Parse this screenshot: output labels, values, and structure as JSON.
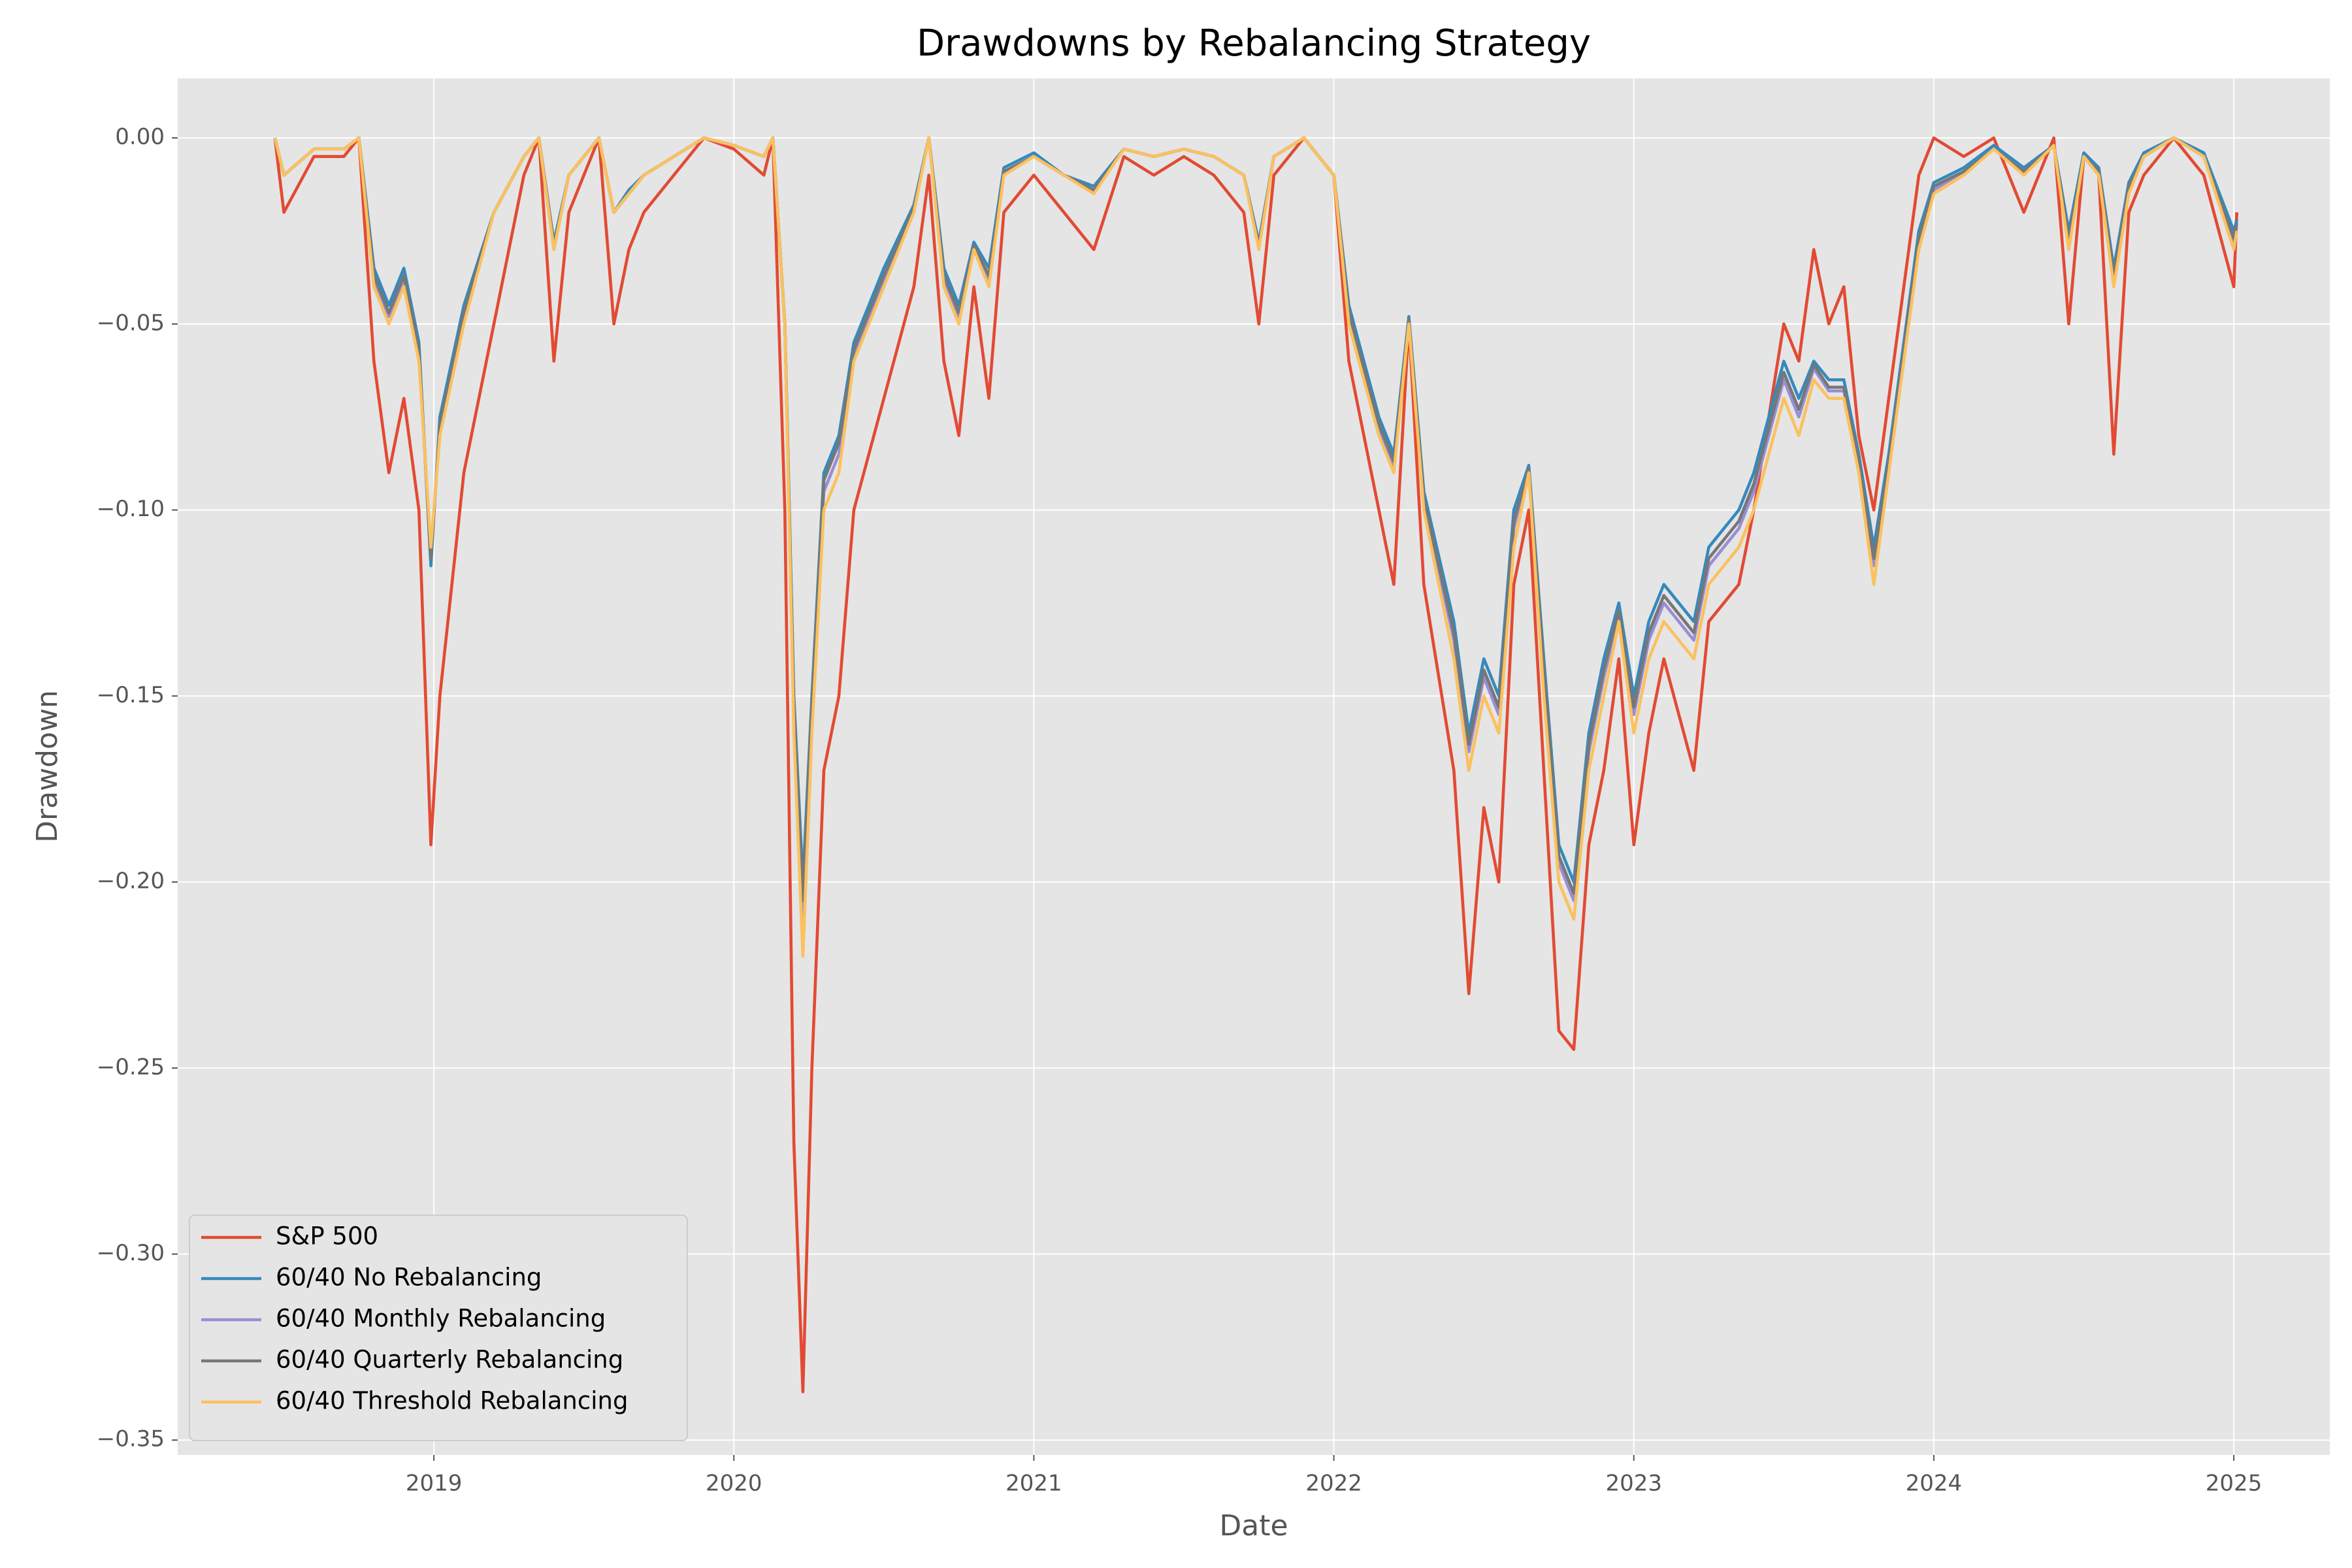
{
  "chart_data": {
    "type": "line",
    "title": "Drawdowns by Rebalancing Strategy",
    "xlabel": "Date",
    "ylabel": "Drawdown",
    "x": [
      2018.47,
      2018.5,
      2018.6,
      2018.7,
      2018.75,
      2018.8,
      2018.85,
      2018.9,
      2018.95,
      2018.99,
      2019.02,
      2019.1,
      2019.2,
      2019.3,
      2019.35,
      2019.4,
      2019.45,
      2019.55,
      2019.6,
      2019.65,
      2019.7,
      2019.8,
      2019.9,
      2020.0,
      2020.1,
      2020.13,
      2020.17,
      2020.2,
      2020.23,
      2020.26,
      2020.3,
      2020.35,
      2020.4,
      2020.5,
      2020.6,
      2020.65,
      2020.7,
      2020.75,
      2020.8,
      2020.85,
      2020.9,
      2021.0,
      2021.1,
      2021.2,
      2021.3,
      2021.4,
      2021.5,
      2021.6,
      2021.7,
      2021.75,
      2021.8,
      2021.9,
      2022.0,
      2022.05,
      2022.15,
      2022.2,
      2022.25,
      2022.3,
      2022.4,
      2022.45,
      2022.5,
      2022.55,
      2022.6,
      2022.65,
      2022.7,
      2022.75,
      2022.8,
      2022.85,
      2022.9,
      2022.95,
      2023.0,
      2023.05,
      2023.1,
      2023.2,
      2023.25,
      2023.35,
      2023.4,
      2023.5,
      2023.55,
      2023.6,
      2023.65,
      2023.7,
      2023.75,
      2023.8,
      2023.85,
      2023.9,
      2023.95,
      2024.0,
      2024.1,
      2024.2,
      2024.3,
      2024.4,
      2024.45,
      2024.5,
      2024.55,
      2024.6,
      2024.65,
      2024.7,
      2024.8,
      2024.9,
      2025.0,
      2025.01
    ],
    "series": [
      {
        "name": "S&P 500",
        "color": "#E24A33",
        "values": [
          0,
          -0.02,
          -0.005,
          -0.005,
          0,
          -0.06,
          -0.09,
          -0.07,
          -0.1,
          -0.19,
          -0.15,
          -0.09,
          -0.05,
          -0.01,
          0,
          -0.06,
          -0.02,
          0,
          -0.05,
          -0.03,
          -0.02,
          -0.01,
          0,
          -0.003,
          -0.01,
          0,
          -0.1,
          -0.27,
          -0.337,
          -0.25,
          -0.17,
          -0.15,
          -0.1,
          -0.07,
          -0.04,
          -0.01,
          -0.06,
          -0.08,
          -0.04,
          -0.07,
          -0.02,
          -0.01,
          -0.02,
          -0.03,
          -0.005,
          -0.01,
          -0.005,
          -0.01,
          -0.02,
          -0.05,
          -0.01,
          0,
          -0.01,
          -0.06,
          -0.1,
          -0.12,
          -0.05,
          -0.12,
          -0.17,
          -0.23,
          -0.18,
          -0.2,
          -0.12,
          -0.1,
          -0.17,
          -0.24,
          -0.245,
          -0.19,
          -0.17,
          -0.14,
          -0.19,
          -0.16,
          -0.14,
          -0.17,
          -0.13,
          -0.12,
          -0.1,
          -0.05,
          -0.06,
          -0.03,
          -0.05,
          -0.04,
          -0.08,
          -0.1,
          -0.07,
          -0.04,
          -0.01,
          0,
          -0.005,
          0,
          -0.02,
          0,
          -0.05,
          -0.005,
          -0.01,
          -0.085,
          -0.02,
          -0.01,
          0,
          -0.01,
          -0.04,
          -0.02
        ]
      },
      {
        "name": "60/40 No Rebalancing",
        "color": "#348ABD",
        "values": [
          0,
          -0.01,
          -0.003,
          -0.003,
          0,
          -0.035,
          -0.045,
          -0.035,
          -0.055,
          -0.115,
          -0.075,
          -0.045,
          -0.02,
          -0.005,
          0,
          -0.028,
          -0.01,
          0,
          -0.02,
          -0.014,
          -0.01,
          -0.005,
          0,
          -0.002,
          -0.005,
          0,
          -0.05,
          -0.15,
          -0.2,
          -0.15,
          -0.09,
          -0.08,
          -0.055,
          -0.035,
          -0.018,
          0,
          -0.035,
          -0.045,
          -0.028,
          -0.035,
          -0.008,
          -0.004,
          -0.01,
          -0.013,
          -0.003,
          -0.005,
          -0.003,
          -0.005,
          -0.01,
          -0.028,
          -0.005,
          0,
          -0.01,
          -0.045,
          -0.075,
          -0.085,
          -0.048,
          -0.095,
          -0.13,
          -0.16,
          -0.14,
          -0.15,
          -0.1,
          -0.088,
          -0.14,
          -0.19,
          -0.2,
          -0.16,
          -0.14,
          -0.125,
          -0.15,
          -0.13,
          -0.12,
          -0.13,
          -0.11,
          -0.1,
          -0.09,
          -0.06,
          -0.07,
          -0.06,
          -0.065,
          -0.065,
          -0.085,
          -0.11,
          -0.085,
          -0.055,
          -0.025,
          -0.012,
          -0.008,
          -0.002,
          -0.008,
          -0.002,
          -0.025,
          -0.004,
          -0.008,
          -0.035,
          -0.012,
          -0.004,
          0,
          -0.004,
          -0.025,
          -0.022
        ]
      },
      {
        "name": "60/40 Monthly Rebalancing",
        "color": "#988ED5",
        "values": [
          0,
          -0.01,
          -0.003,
          -0.003,
          0,
          -0.038,
          -0.048,
          -0.038,
          -0.058,
          -0.112,
          -0.078,
          -0.048,
          -0.02,
          -0.005,
          0,
          -0.03,
          -0.01,
          0,
          -0.02,
          -0.015,
          -0.01,
          -0.005,
          0,
          -0.002,
          -0.005,
          0,
          -0.05,
          -0.155,
          -0.21,
          -0.155,
          -0.095,
          -0.085,
          -0.058,
          -0.038,
          -0.019,
          0,
          -0.038,
          -0.048,
          -0.029,
          -0.038,
          -0.009,
          -0.005,
          -0.01,
          -0.014,
          -0.003,
          -0.005,
          -0.003,
          -0.005,
          -0.01,
          -0.029,
          -0.005,
          0,
          -0.01,
          -0.048,
          -0.078,
          -0.088,
          -0.049,
          -0.098,
          -0.135,
          -0.165,
          -0.145,
          -0.155,
          -0.105,
          -0.089,
          -0.145,
          -0.195,
          -0.205,
          -0.165,
          -0.145,
          -0.128,
          -0.155,
          -0.135,
          -0.125,
          -0.135,
          -0.115,
          -0.105,
          -0.095,
          -0.065,
          -0.075,
          -0.062,
          -0.068,
          -0.068,
          -0.088,
          -0.115,
          -0.088,
          -0.058,
          -0.028,
          -0.014,
          -0.009,
          -0.003,
          -0.009,
          -0.002,
          -0.028,
          -0.005,
          -0.009,
          -0.038,
          -0.014,
          -0.005,
          0,
          -0.005,
          -0.028,
          -0.024
        ]
      },
      {
        "name": "60/40 Quarterly Rebalancing",
        "color": "#777777",
        "values": [
          0,
          -0.01,
          -0.003,
          -0.003,
          0,
          -0.037,
          -0.047,
          -0.037,
          -0.057,
          -0.113,
          -0.077,
          -0.047,
          -0.02,
          -0.005,
          0,
          -0.029,
          -0.01,
          0,
          -0.02,
          -0.015,
          -0.01,
          -0.005,
          0,
          -0.002,
          -0.005,
          0,
          -0.05,
          -0.152,
          -0.205,
          -0.152,
          -0.092,
          -0.082,
          -0.057,
          -0.037,
          -0.019,
          0,
          -0.037,
          -0.047,
          -0.029,
          -0.037,
          -0.009,
          -0.005,
          -0.01,
          -0.014,
          -0.003,
          -0.005,
          -0.003,
          -0.005,
          -0.01,
          -0.029,
          -0.005,
          0,
          -0.01,
          -0.047,
          -0.077,
          -0.087,
          -0.049,
          -0.097,
          -0.133,
          -0.163,
          -0.143,
          -0.153,
          -0.103,
          -0.089,
          -0.143,
          -0.193,
          -0.203,
          -0.163,
          -0.143,
          -0.127,
          -0.153,
          -0.133,
          -0.123,
          -0.133,
          -0.113,
          -0.103,
          -0.093,
          -0.063,
          -0.073,
          -0.061,
          -0.067,
          -0.067,
          -0.087,
          -0.113,
          -0.087,
          -0.057,
          -0.027,
          -0.013,
          -0.009,
          -0.003,
          -0.009,
          -0.002,
          -0.027,
          -0.005,
          -0.009,
          -0.037,
          -0.013,
          -0.005,
          0,
          -0.005,
          -0.027,
          -0.023
        ]
      },
      {
        "name": "60/40 Threshold Rebalancing",
        "color": "#FBC15E",
        "values": [
          0,
          -0.01,
          -0.003,
          -0.003,
          0,
          -0.04,
          -0.05,
          -0.04,
          -0.06,
          -0.11,
          -0.08,
          -0.05,
          -0.02,
          -0.005,
          0,
          -0.03,
          -0.01,
          0,
          -0.02,
          -0.015,
          -0.01,
          -0.005,
          0,
          -0.002,
          -0.005,
          0,
          -0.05,
          -0.16,
          -0.22,
          -0.16,
          -0.1,
          -0.09,
          -0.06,
          -0.04,
          -0.02,
          0,
          -0.04,
          -0.05,
          -0.03,
          -0.04,
          -0.01,
          -0.005,
          -0.01,
          -0.015,
          -0.003,
          -0.005,
          -0.003,
          -0.005,
          -0.01,
          -0.03,
          -0.005,
          0,
          -0.01,
          -0.05,
          -0.08,
          -0.09,
          -0.05,
          -0.1,
          -0.14,
          -0.17,
          -0.15,
          -0.16,
          -0.11,
          -0.09,
          -0.15,
          -0.2,
          -0.21,
          -0.17,
          -0.15,
          -0.13,
          -0.16,
          -0.14,
          -0.13,
          -0.14,
          -0.12,
          -0.11,
          -0.1,
          -0.07,
          -0.08,
          -0.065,
          -0.07,
          -0.07,
          -0.09,
          -0.12,
          -0.09,
          -0.06,
          -0.03,
          -0.015,
          -0.01,
          -0.003,
          -0.01,
          -0.002,
          -0.03,
          -0.005,
          -0.01,
          -0.04,
          -0.015,
          -0.005,
          0,
          -0.005,
          -0.03,
          -0.025
        ]
      }
    ],
    "xlim": [
      2018.146,
      2025.32
    ],
    "xticks": [
      2019,
      2020,
      2021,
      2022,
      2023,
      2024,
      2025
    ],
    "ylim": [
      -0.354,
      0.016
    ],
    "yticks": [
      {
        "value": 0,
        "label": "0.00"
      },
      {
        "value": -0.05,
        "label": "−0.05"
      },
      {
        "value": -0.1,
        "label": "−0.10"
      },
      {
        "value": -0.15,
        "label": "−0.15"
      },
      {
        "value": -0.2,
        "label": "−0.20"
      },
      {
        "value": -0.25,
        "label": "−0.25"
      },
      {
        "value": -0.3,
        "label": "−0.30"
      },
      {
        "value": -0.35,
        "label": "−0.35"
      }
    ],
    "grid": true,
    "legend": "lower left"
  }
}
